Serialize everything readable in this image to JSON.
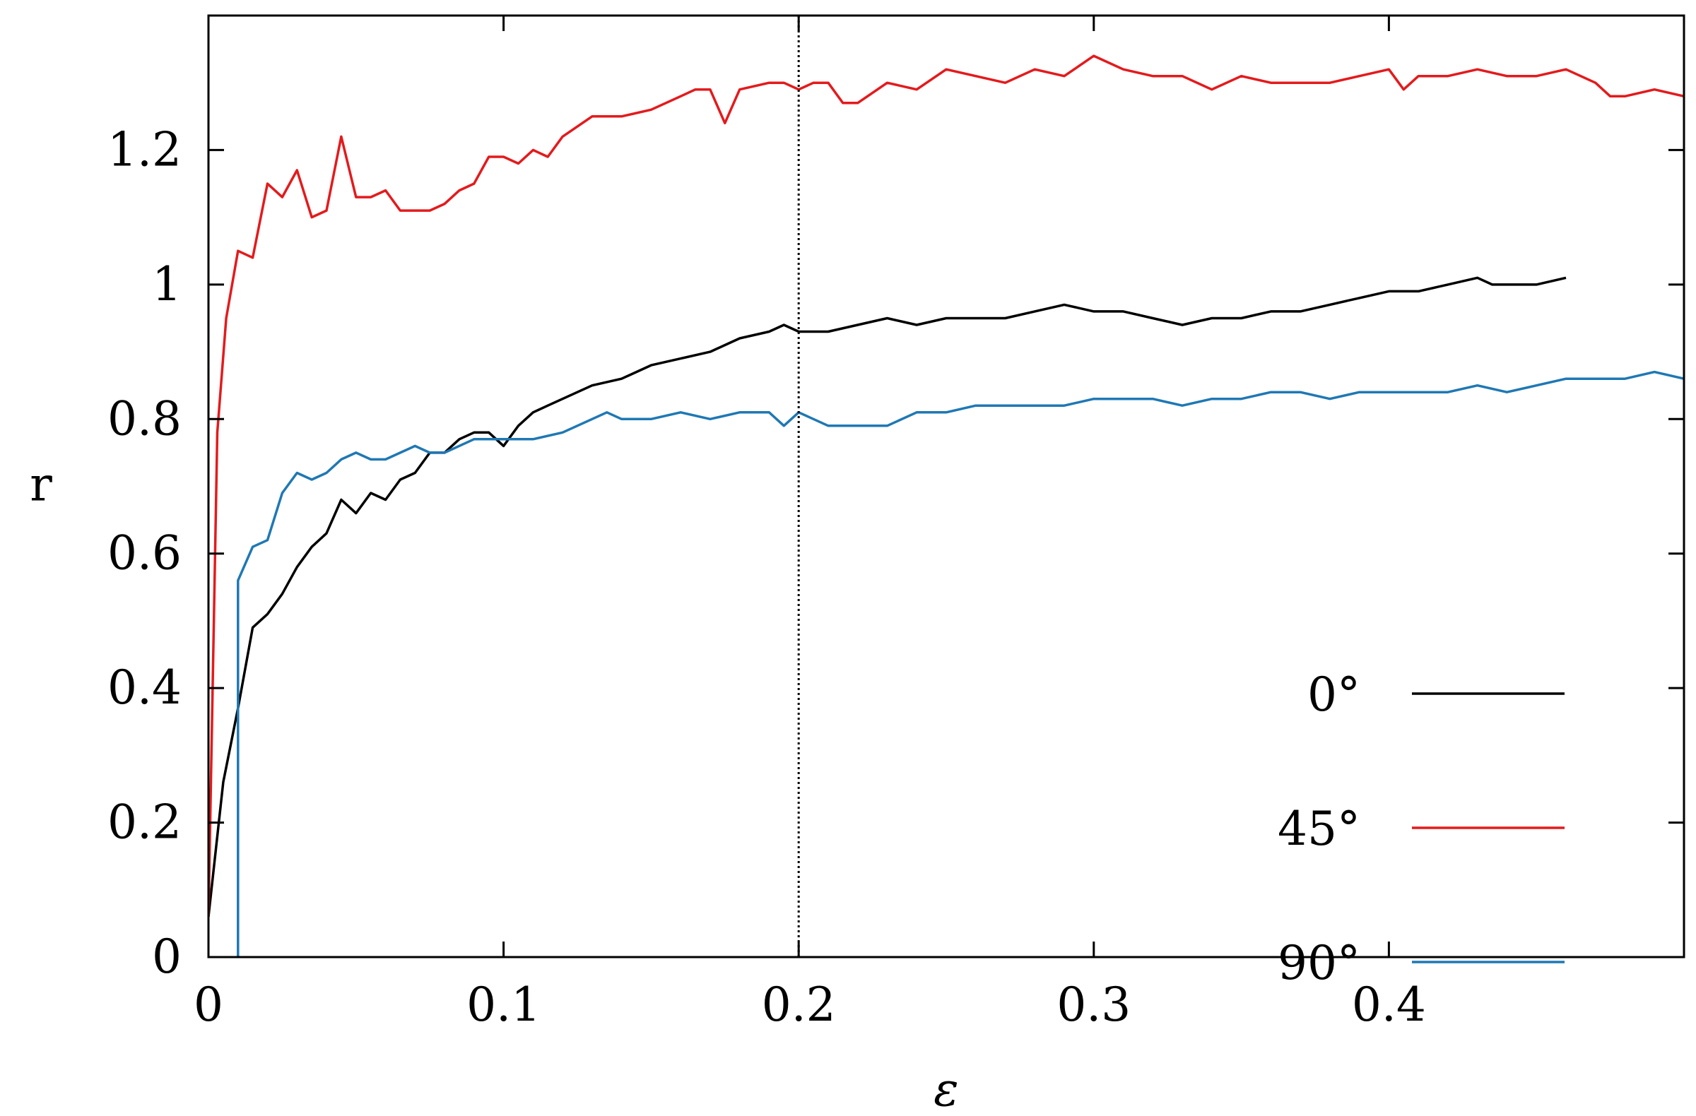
{
  "chart_data": {
    "type": "line",
    "xlabel": "ε",
    "ylabel": "r",
    "xlim": [
      0,
      0.5
    ],
    "ylim": [
      0,
      1.4
    ],
    "xticks": [
      0,
      0.1,
      0.2,
      0.3,
      0.4
    ],
    "xtick_labels": [
      "0",
      "0.1",
      "0.2",
      "0.3",
      "0.4"
    ],
    "yticks": [
      0,
      0.2,
      0.4,
      0.6,
      0.8,
      1.0,
      1.2
    ],
    "ytick_labels": [
      "0",
      "0.2",
      "0.4",
      "0.6",
      "0.8",
      "1",
      "1.2"
    ],
    "grid": false,
    "legend_position": "bottom-right",
    "reference_line": {
      "x": 0.2,
      "style": "dotted"
    },
    "series": [
      {
        "name": "0°",
        "color": "#000000",
        "x": [
          0,
          0.005,
          0.01,
          0.015,
          0.02,
          0.025,
          0.03,
          0.035,
          0.04,
          0.045,
          0.05,
          0.055,
          0.06,
          0.065,
          0.07,
          0.075,
          0.08,
          0.085,
          0.09,
          0.095,
          0.1,
          0.105,
          0.11,
          0.115,
          0.12,
          0.125,
          0.13,
          0.14,
          0.15,
          0.16,
          0.17,
          0.18,
          0.19,
          0.195,
          0.2,
          0.21,
          0.22,
          0.23,
          0.24,
          0.25,
          0.26,
          0.27,
          0.28,
          0.29,
          0.3,
          0.31,
          0.32,
          0.33,
          0.34,
          0.35,
          0.36,
          0.37,
          0.38,
          0.39,
          0.4,
          0.41,
          0.42,
          0.43,
          0.435,
          0.44,
          0.45,
          0.46
        ],
        "y": [
          0.06,
          0.26,
          0.37,
          0.49,
          0.51,
          0.54,
          0.58,
          0.61,
          0.63,
          0.68,
          0.66,
          0.69,
          0.68,
          0.71,
          0.72,
          0.75,
          0.75,
          0.77,
          0.78,
          0.78,
          0.76,
          0.79,
          0.81,
          0.82,
          0.83,
          0.84,
          0.85,
          0.86,
          0.88,
          0.89,
          0.9,
          0.92,
          0.93,
          0.94,
          0.93,
          0.93,
          0.94,
          0.95,
          0.94,
          0.95,
          0.95,
          0.95,
          0.96,
          0.97,
          0.96,
          0.96,
          0.95,
          0.94,
          0.95,
          0.95,
          0.96,
          0.96,
          0.97,
          0.98,
          0.99,
          0.99,
          1.0,
          1.01,
          1.0,
          1.0,
          1.0,
          1.01
        ]
      },
      {
        "name": "45°",
        "color": "#e41a1c",
        "x": [
          0,
          0.003,
          0.006,
          0.01,
          0.015,
          0.02,
          0.025,
          0.03,
          0.035,
          0.04,
          0.045,
          0.05,
          0.055,
          0.06,
          0.065,
          0.07,
          0.075,
          0.08,
          0.085,
          0.09,
          0.095,
          0.1,
          0.105,
          0.11,
          0.115,
          0.12,
          0.13,
          0.14,
          0.15,
          0.16,
          0.165,
          0.17,
          0.175,
          0.18,
          0.19,
          0.195,
          0.2,
          0.205,
          0.21,
          0.215,
          0.22,
          0.23,
          0.24,
          0.25,
          0.26,
          0.27,
          0.28,
          0.29,
          0.3,
          0.31,
          0.32,
          0.33,
          0.34,
          0.35,
          0.36,
          0.37,
          0.38,
          0.39,
          0.4,
          0.405,
          0.41,
          0.42,
          0.43,
          0.44,
          0.45,
          0.46,
          0.47,
          0.475,
          0.48,
          0.49,
          0.5
        ],
        "y": [
          0.06,
          0.78,
          0.95,
          1.05,
          1.04,
          1.15,
          1.13,
          1.17,
          1.1,
          1.11,
          1.22,
          1.13,
          1.13,
          1.14,
          1.11,
          1.11,
          1.11,
          1.12,
          1.14,
          1.15,
          1.19,
          1.19,
          1.18,
          1.2,
          1.19,
          1.22,
          1.25,
          1.25,
          1.26,
          1.28,
          1.29,
          1.29,
          1.24,
          1.29,
          1.3,
          1.3,
          1.29,
          1.3,
          1.3,
          1.27,
          1.27,
          1.3,
          1.29,
          1.32,
          1.31,
          1.3,
          1.32,
          1.31,
          1.34,
          1.32,
          1.31,
          1.31,
          1.29,
          1.31,
          1.3,
          1.3,
          1.3,
          1.31,
          1.32,
          1.29,
          1.31,
          1.31,
          1.32,
          1.31,
          1.31,
          1.32,
          1.3,
          1.28,
          1.28,
          1.29,
          1.28
        ]
      },
      {
        "name": "90°",
        "color": "#1f78b4",
        "x": [
          0.01,
          0.01,
          0.015,
          0.02,
          0.025,
          0.03,
          0.035,
          0.04,
          0.045,
          0.05,
          0.055,
          0.06,
          0.065,
          0.07,
          0.075,
          0.08,
          0.09,
          0.1,
          0.11,
          0.12,
          0.13,
          0.135,
          0.14,
          0.15,
          0.16,
          0.17,
          0.18,
          0.19,
          0.195,
          0.2,
          0.21,
          0.22,
          0.23,
          0.24,
          0.25,
          0.26,
          0.27,
          0.28,
          0.29,
          0.3,
          0.31,
          0.32,
          0.33,
          0.34,
          0.35,
          0.36,
          0.37,
          0.38,
          0.39,
          0.4,
          0.41,
          0.42,
          0.43,
          0.44,
          0.45,
          0.46,
          0.47,
          0.48,
          0.49,
          0.5
        ],
        "y": [
          0,
          0.56,
          0.61,
          0.62,
          0.69,
          0.72,
          0.71,
          0.72,
          0.74,
          0.75,
          0.74,
          0.74,
          0.75,
          0.76,
          0.75,
          0.75,
          0.77,
          0.77,
          0.77,
          0.78,
          0.8,
          0.81,
          0.8,
          0.8,
          0.81,
          0.8,
          0.81,
          0.81,
          0.79,
          0.81,
          0.79,
          0.79,
          0.79,
          0.81,
          0.81,
          0.82,
          0.82,
          0.82,
          0.82,
          0.83,
          0.83,
          0.83,
          0.82,
          0.83,
          0.83,
          0.84,
          0.84,
          0.83,
          0.84,
          0.84,
          0.84,
          0.84,
          0.85,
          0.84,
          0.85,
          0.86,
          0.86,
          0.86,
          0.87,
          0.86
        ]
      }
    ]
  }
}
